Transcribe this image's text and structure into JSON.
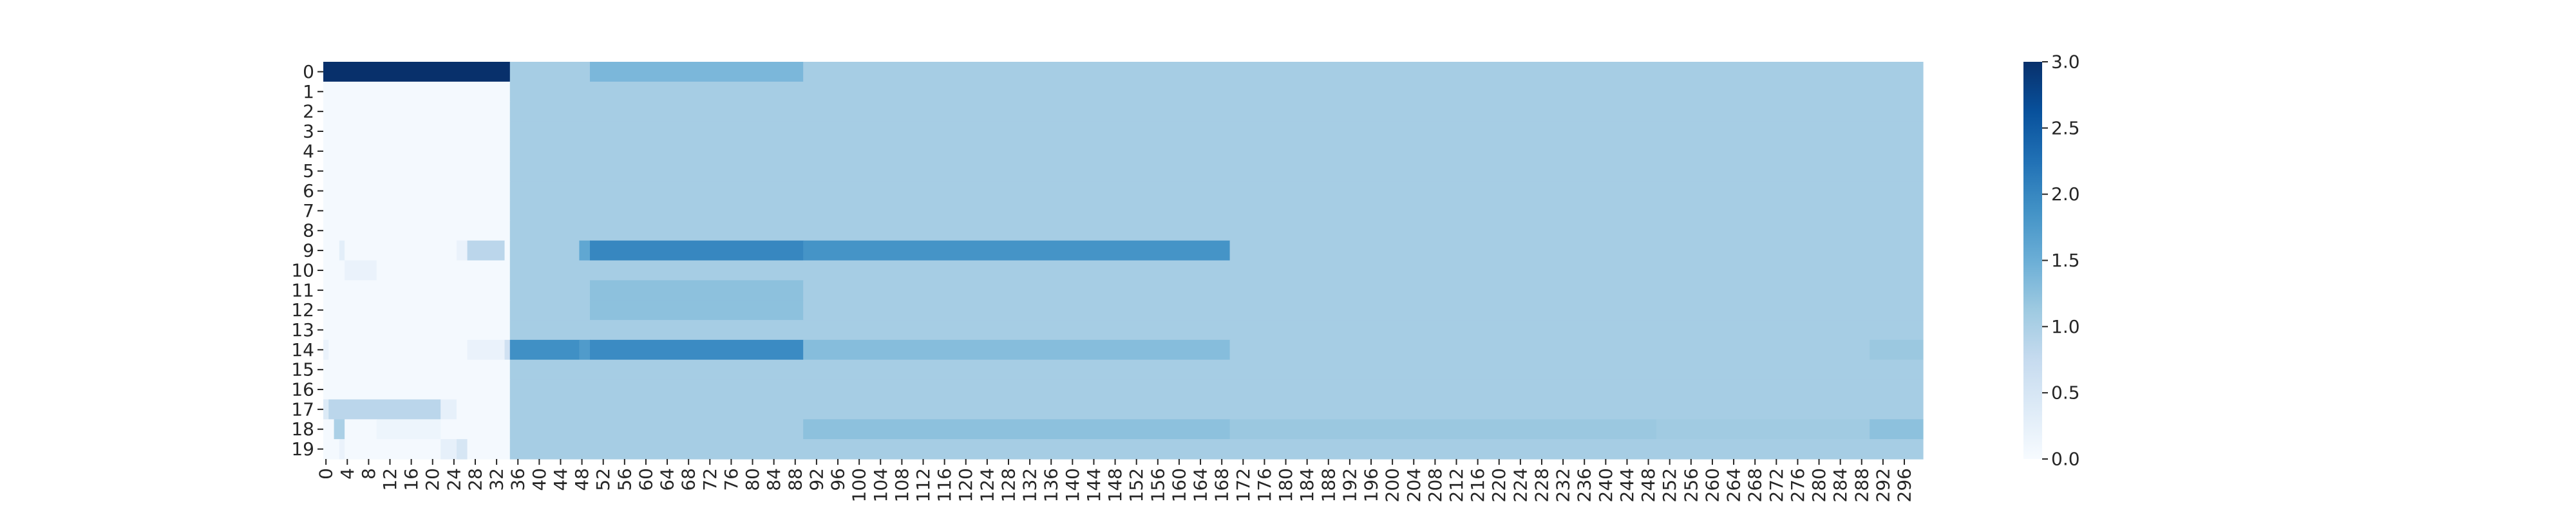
{
  "chart_data": {
    "type": "heatmap",
    "title": "",
    "xlabel": "",
    "ylabel": "",
    "rows": [
      "0",
      "1",
      "2",
      "3",
      "4",
      "5",
      "6",
      "7",
      "8",
      "9",
      "10",
      "11",
      "12",
      "13",
      "14",
      "15",
      "16",
      "17",
      "18",
      "19"
    ],
    "n_cols": 300,
    "x_tick_step": 4,
    "x_tick_labels": [
      "0",
      "4",
      "8",
      "12",
      "16",
      "20",
      "24",
      "28",
      "32",
      "36",
      "40",
      "44",
      "48",
      "52",
      "56",
      "60",
      "64",
      "68",
      "72",
      "76",
      "80",
      "84",
      "88",
      "92",
      "96",
      "100",
      "104",
      "108",
      "112",
      "116",
      "120",
      "124",
      "128",
      "132",
      "136",
      "140",
      "144",
      "148",
      "152",
      "156",
      "160",
      "164",
      "168",
      "172",
      "176",
      "180",
      "184",
      "188",
      "192",
      "196",
      "200",
      "204",
      "208",
      "212",
      "216",
      "220",
      "224",
      "228",
      "232",
      "236",
      "240",
      "244",
      "248",
      "252",
      "256",
      "260",
      "264",
      "268",
      "272",
      "276",
      "280",
      "284",
      "288",
      "292",
      "296"
    ],
    "value_range": [
      0,
      3
    ],
    "colormap": "Blues",
    "colorbar": {
      "ticks": [
        0.0,
        0.5,
        1.0,
        1.5,
        2.0,
        2.5,
        3.0
      ],
      "tick_labels": [
        "0.0",
        "0.5",
        "1.0",
        "1.5",
        "2.0",
        "2.5",
        "3.0"
      ],
      "placement": "right"
    },
    "default_value": 1.05,
    "segments": [
      {
        "row": 0,
        "from": 0,
        "to": 35,
        "value": 3.0
      },
      {
        "row": 0,
        "from": 35,
        "to": 50,
        "value": 1.05
      },
      {
        "row": 0,
        "from": 50,
        "to": 90,
        "value": 1.38
      },
      {
        "row": 1,
        "from": 0,
        "to": 35,
        "value": 0.04
      },
      {
        "row": 2,
        "from": 0,
        "to": 35,
        "value": 0.04
      },
      {
        "row": 3,
        "from": 0,
        "to": 35,
        "value": 0.04
      },
      {
        "row": 4,
        "from": 0,
        "to": 35,
        "value": 0.04
      },
      {
        "row": 5,
        "from": 0,
        "to": 35,
        "value": 0.04
      },
      {
        "row": 6,
        "from": 0,
        "to": 35,
        "value": 0.04
      },
      {
        "row": 7,
        "from": 0,
        "to": 35,
        "value": 0.04
      },
      {
        "row": 8,
        "from": 0,
        "to": 35,
        "value": 0.04
      },
      {
        "row": 9,
        "from": 0,
        "to": 3,
        "value": 0.04
      },
      {
        "row": 9,
        "from": 3,
        "to": 4,
        "value": 0.3
      },
      {
        "row": 9,
        "from": 4,
        "to": 25,
        "value": 0.04
      },
      {
        "row": 9,
        "from": 25,
        "to": 27,
        "value": 0.2
      },
      {
        "row": 9,
        "from": 27,
        "to": 34,
        "value": 0.85
      },
      {
        "row": 9,
        "from": 34,
        "to": 35,
        "value": 0.04
      },
      {
        "row": 9,
        "from": 48,
        "to": 50,
        "value": 1.6
      },
      {
        "row": 9,
        "from": 50,
        "to": 90,
        "value": 2.0
      },
      {
        "row": 9,
        "from": 90,
        "to": 170,
        "value": 1.85
      },
      {
        "row": 10,
        "from": 0,
        "to": 4,
        "value": 0.04
      },
      {
        "row": 10,
        "from": 4,
        "to": 10,
        "value": 0.2
      },
      {
        "row": 10,
        "from": 10,
        "to": 35,
        "value": 0.04
      },
      {
        "row": 11,
        "from": 0,
        "to": 35,
        "value": 0.04
      },
      {
        "row": 11,
        "from": 50,
        "to": 90,
        "value": 1.25
      },
      {
        "row": 12,
        "from": 0,
        "to": 35,
        "value": 0.04
      },
      {
        "row": 12,
        "from": 50,
        "to": 90,
        "value": 1.25
      },
      {
        "row": 13,
        "from": 0,
        "to": 35,
        "value": 0.04
      },
      {
        "row": 14,
        "from": 0,
        "to": 1,
        "value": 0.2
      },
      {
        "row": 14,
        "from": 1,
        "to": 27,
        "value": 0.04
      },
      {
        "row": 14,
        "from": 27,
        "to": 34,
        "value": 0.2
      },
      {
        "row": 14,
        "from": 34,
        "to": 35,
        "value": 0.6
      },
      {
        "row": 14,
        "from": 35,
        "to": 48,
        "value": 1.9
      },
      {
        "row": 14,
        "from": 48,
        "to": 50,
        "value": 1.75
      },
      {
        "row": 14,
        "from": 50,
        "to": 90,
        "value": 1.95
      },
      {
        "row": 14,
        "from": 90,
        "to": 170,
        "value": 1.3
      },
      {
        "row": 14,
        "from": 290,
        "to": 300,
        "value": 1.15
      },
      {
        "row": 15,
        "from": 0,
        "to": 35,
        "value": 0.04
      },
      {
        "row": 16,
        "from": 0,
        "to": 35,
        "value": 0.04
      },
      {
        "row": 17,
        "from": 0,
        "to": 1,
        "value": 0.4
      },
      {
        "row": 17,
        "from": 1,
        "to": 22,
        "value": 0.85
      },
      {
        "row": 17,
        "from": 22,
        "to": 25,
        "value": 0.25
      },
      {
        "row": 17,
        "from": 25,
        "to": 35,
        "value": 0.04
      },
      {
        "row": 18,
        "from": 0,
        "to": 2,
        "value": 0.04
      },
      {
        "row": 18,
        "from": 2,
        "to": 4,
        "value": 1.0
      },
      {
        "row": 18,
        "from": 4,
        "to": 10,
        "value": 0.04
      },
      {
        "row": 18,
        "from": 10,
        "to": 22,
        "value": 0.15
      },
      {
        "row": 18,
        "from": 22,
        "to": 35,
        "value": 0.04
      },
      {
        "row": 18,
        "from": 90,
        "to": 170,
        "value": 1.25
      },
      {
        "row": 18,
        "from": 170,
        "to": 250,
        "value": 1.15
      },
      {
        "row": 18,
        "from": 250,
        "to": 290,
        "value": 1.1
      },
      {
        "row": 18,
        "from": 290,
        "to": 300,
        "value": 1.25
      },
      {
        "row": 19,
        "from": 0,
        "to": 3,
        "value": 0.04
      },
      {
        "row": 19,
        "from": 3,
        "to": 4,
        "value": 0.2
      },
      {
        "row": 19,
        "from": 4,
        "to": 22,
        "value": 0.04
      },
      {
        "row": 19,
        "from": 22,
        "to": 25,
        "value": 0.25
      },
      {
        "row": 19,
        "from": 25,
        "to": 27,
        "value": 0.5
      },
      {
        "row": 19,
        "from": 27,
        "to": 35,
        "value": 0.04
      }
    ]
  }
}
